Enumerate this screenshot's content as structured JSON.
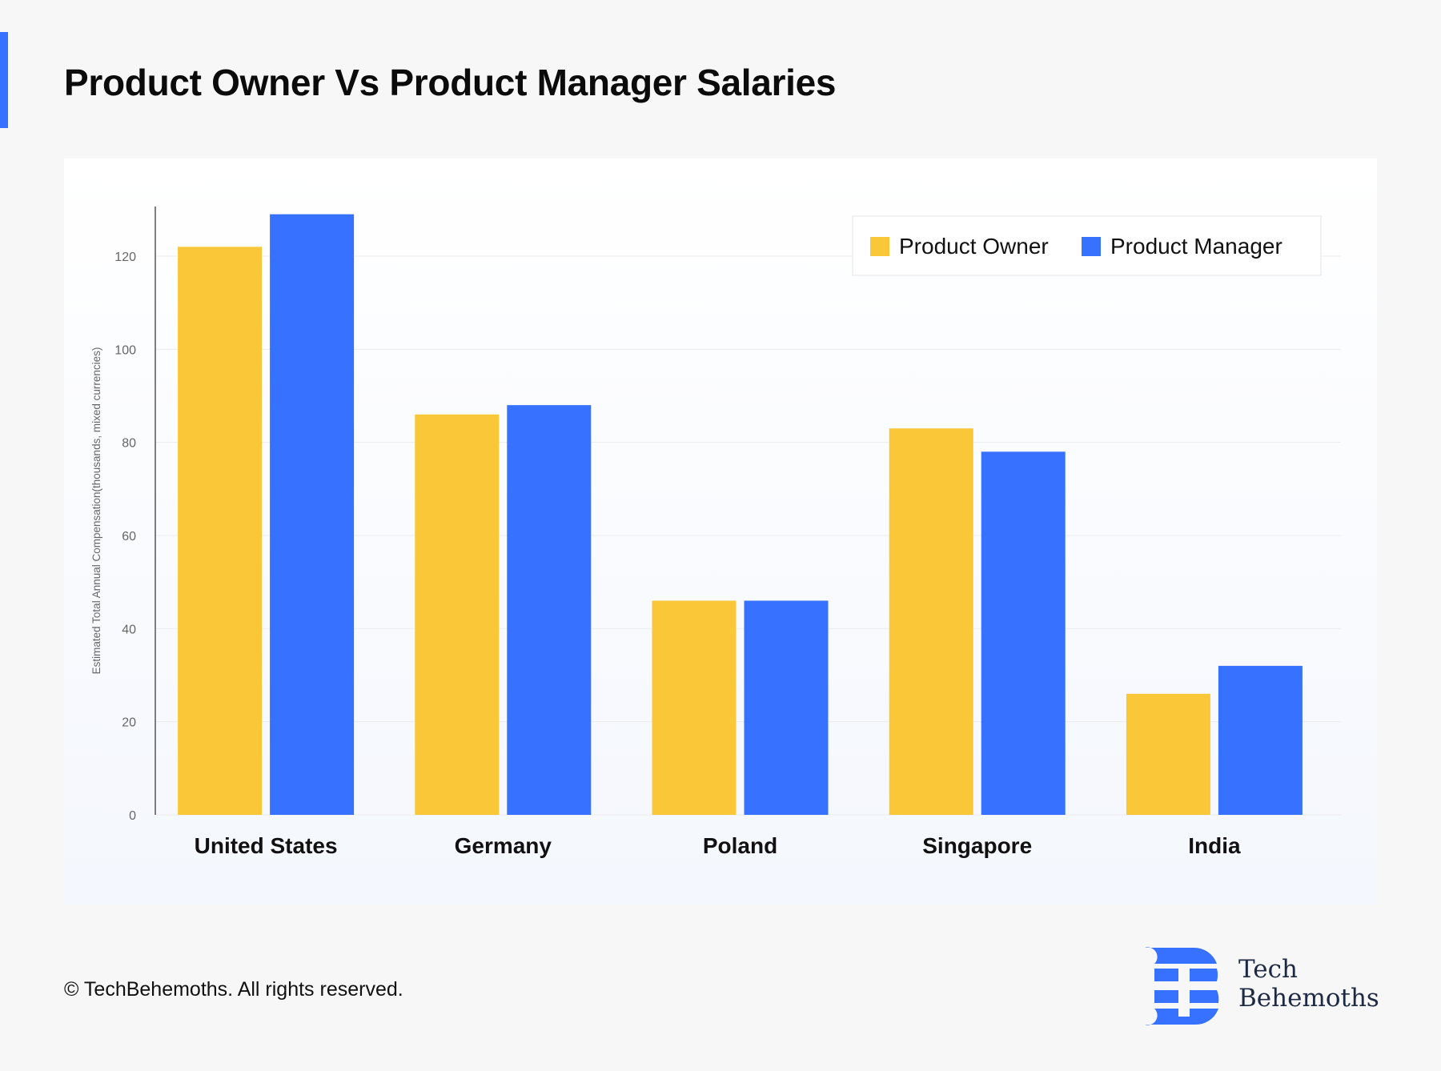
{
  "title": "Product Owner Vs Product Manager Salaries",
  "footer": "© TechBehemoths. All rights reserved.",
  "logo": {
    "line1": "Tech",
    "line2": "Behemoths"
  },
  "colors": {
    "accent": "#3672ff",
    "product_owner": "#f9c737",
    "product_manager": "#3672ff"
  },
  "chart_data": {
    "type": "bar",
    "title": "Product Owner Vs Product Manager Salaries",
    "xlabel": "",
    "ylabel": "Estimated Total Annual Compensation(thousands, mixed currencies)",
    "categories": [
      "United States",
      "Germany",
      "Poland",
      "Singapore",
      "India"
    ],
    "series": [
      {
        "name": "Product Owner",
        "values": [
          122,
          86,
          46,
          83,
          26
        ]
      },
      {
        "name": "Product Manager",
        "values": [
          129,
          88,
          46,
          78,
          32
        ]
      }
    ],
    "ylim": [
      0,
      130
    ],
    "yticks": [
      0,
      20,
      40,
      60,
      80,
      100,
      120
    ],
    "grid": true,
    "legend": "top-right"
  }
}
